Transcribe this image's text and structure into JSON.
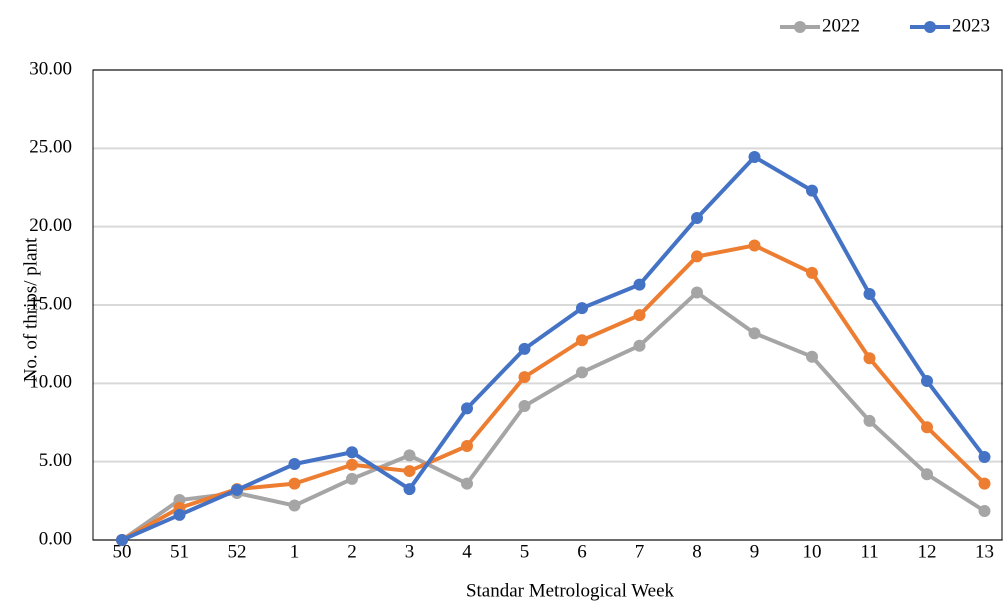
{
  "chart_data": {
    "type": "line",
    "categories": [
      "50",
      "51",
      "52",
      "1",
      "2",
      "3",
      "4",
      "5",
      "6",
      "7",
      "8",
      "9",
      "10",
      "11",
      "12",
      "13"
    ],
    "series": [
      {
        "name": "2022",
        "color": "#a5a5a5",
        "values": [
          0,
          2.55,
          3.0,
          2.2,
          3.9,
          5.4,
          3.6,
          8.55,
          10.7,
          12.4,
          15.8,
          13.2,
          11.7,
          7.6,
          4.2,
          1.85
        ]
      },
      {
        "color": "#ed7d31",
        "values": [
          0,
          2.05,
          3.25,
          3.6,
          4.8,
          4.4,
          6.0,
          10.4,
          12.75,
          14.35,
          18.1,
          18.8,
          17.05,
          11.6,
          7.2,
          3.6
        ]
      },
      {
        "name": "2023",
        "color": "#4472c4",
        "values": [
          0,
          1.6,
          3.2,
          4.85,
          5.6,
          3.25,
          8.4,
          12.2,
          14.8,
          16.3,
          20.55,
          24.45,
          22.3,
          15.7,
          10.15,
          5.3
        ]
      }
    ],
    "xlabel": "Standar Metrological Week",
    "ylabel": "No. of thrips/ plant",
    "ylim": [
      0,
      30
    ],
    "yticks": [
      {
        "value": 0,
        "label": "0.00"
      },
      {
        "value": 5,
        "label": "5.00"
      },
      {
        "value": 10,
        "label": "10.00"
      },
      {
        "value": 15,
        "label": "15.00"
      },
      {
        "value": 20,
        "label": "20.00"
      },
      {
        "value": 25,
        "label": "25.00"
      },
      {
        "value": 30,
        "label": "30.00"
      }
    ],
    "grid": true,
    "legend": "top-right"
  }
}
